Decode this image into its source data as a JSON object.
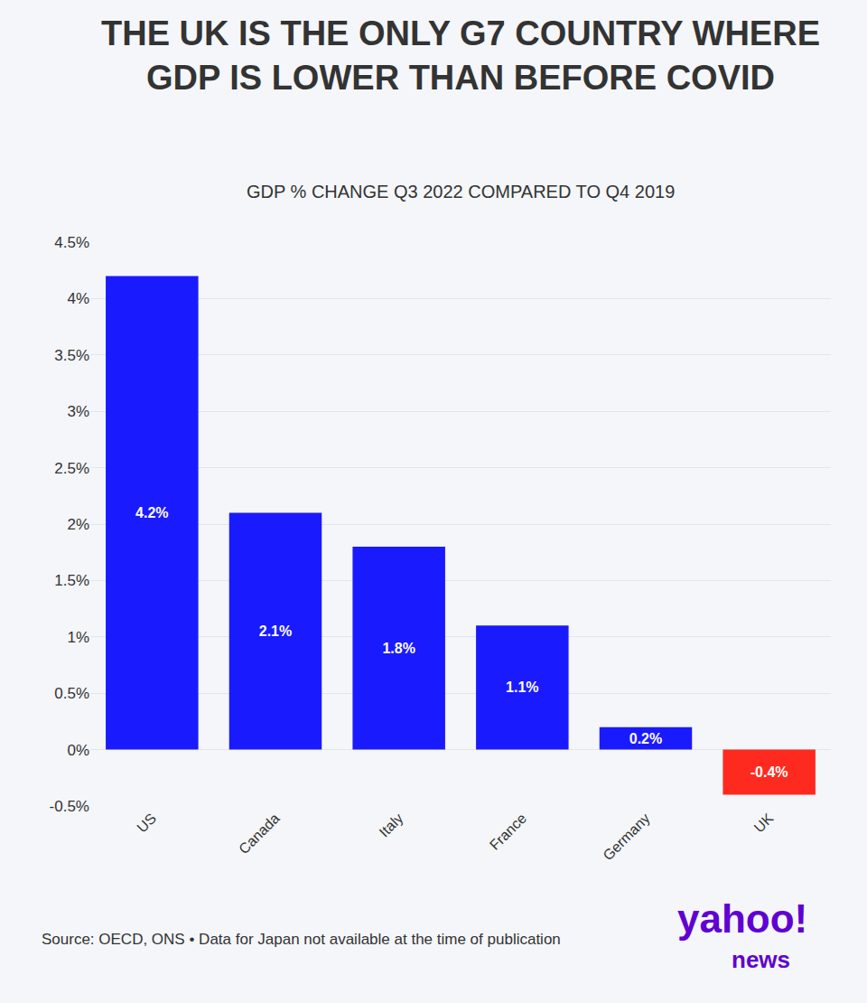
{
  "chart_data": {
    "type": "bar",
    "title": "THE UK IS THE ONLY G7 COUNTRY WHERE GDP IS LOWER THAN BEFORE COVID",
    "subtitle": "GDP % CHANGE Q3 2022 COMPARED TO Q4 2019",
    "categories": [
      "US",
      "Canada",
      "Italy",
      "France",
      "Germany",
      "UK"
    ],
    "values": [
      4.2,
      2.1,
      1.8,
      1.1,
      0.2,
      -0.4
    ],
    "value_labels": [
      "4.2%",
      "2.1%",
      "1.8%",
      "1.1%",
      "0.2%",
      "-0.4%"
    ],
    "colors": [
      "#1a1aff",
      "#1a1aff",
      "#1a1aff",
      "#1a1aff",
      "#1a1aff",
      "#ff2a1f"
    ],
    "ylim": [
      -0.5,
      4.5
    ],
    "yticks": [
      {
        "value": -0.5,
        "label": "-0.5%"
      },
      {
        "value": 0,
        "label": "0%"
      },
      {
        "value": 0.5,
        "label": "0.5%"
      },
      {
        "value": 1,
        "label": "1%"
      },
      {
        "value": 1.5,
        "label": "1.5%"
      },
      {
        "value": 2,
        "label": "2%"
      },
      {
        "value": 2.5,
        "label": "2.5%"
      },
      {
        "value": 3,
        "label": "3%"
      },
      {
        "value": 3.5,
        "label": "3.5%"
      },
      {
        "value": 4,
        "label": "4%"
      },
      {
        "value": 4.5,
        "label": "4.5%"
      }
    ],
    "grid": true,
    "data_labels": true,
    "source": "Source: OECD, ONS • Data for Japan not available at the time of publication",
    "logo": "yahoo!",
    "logo_sub": "news"
  }
}
